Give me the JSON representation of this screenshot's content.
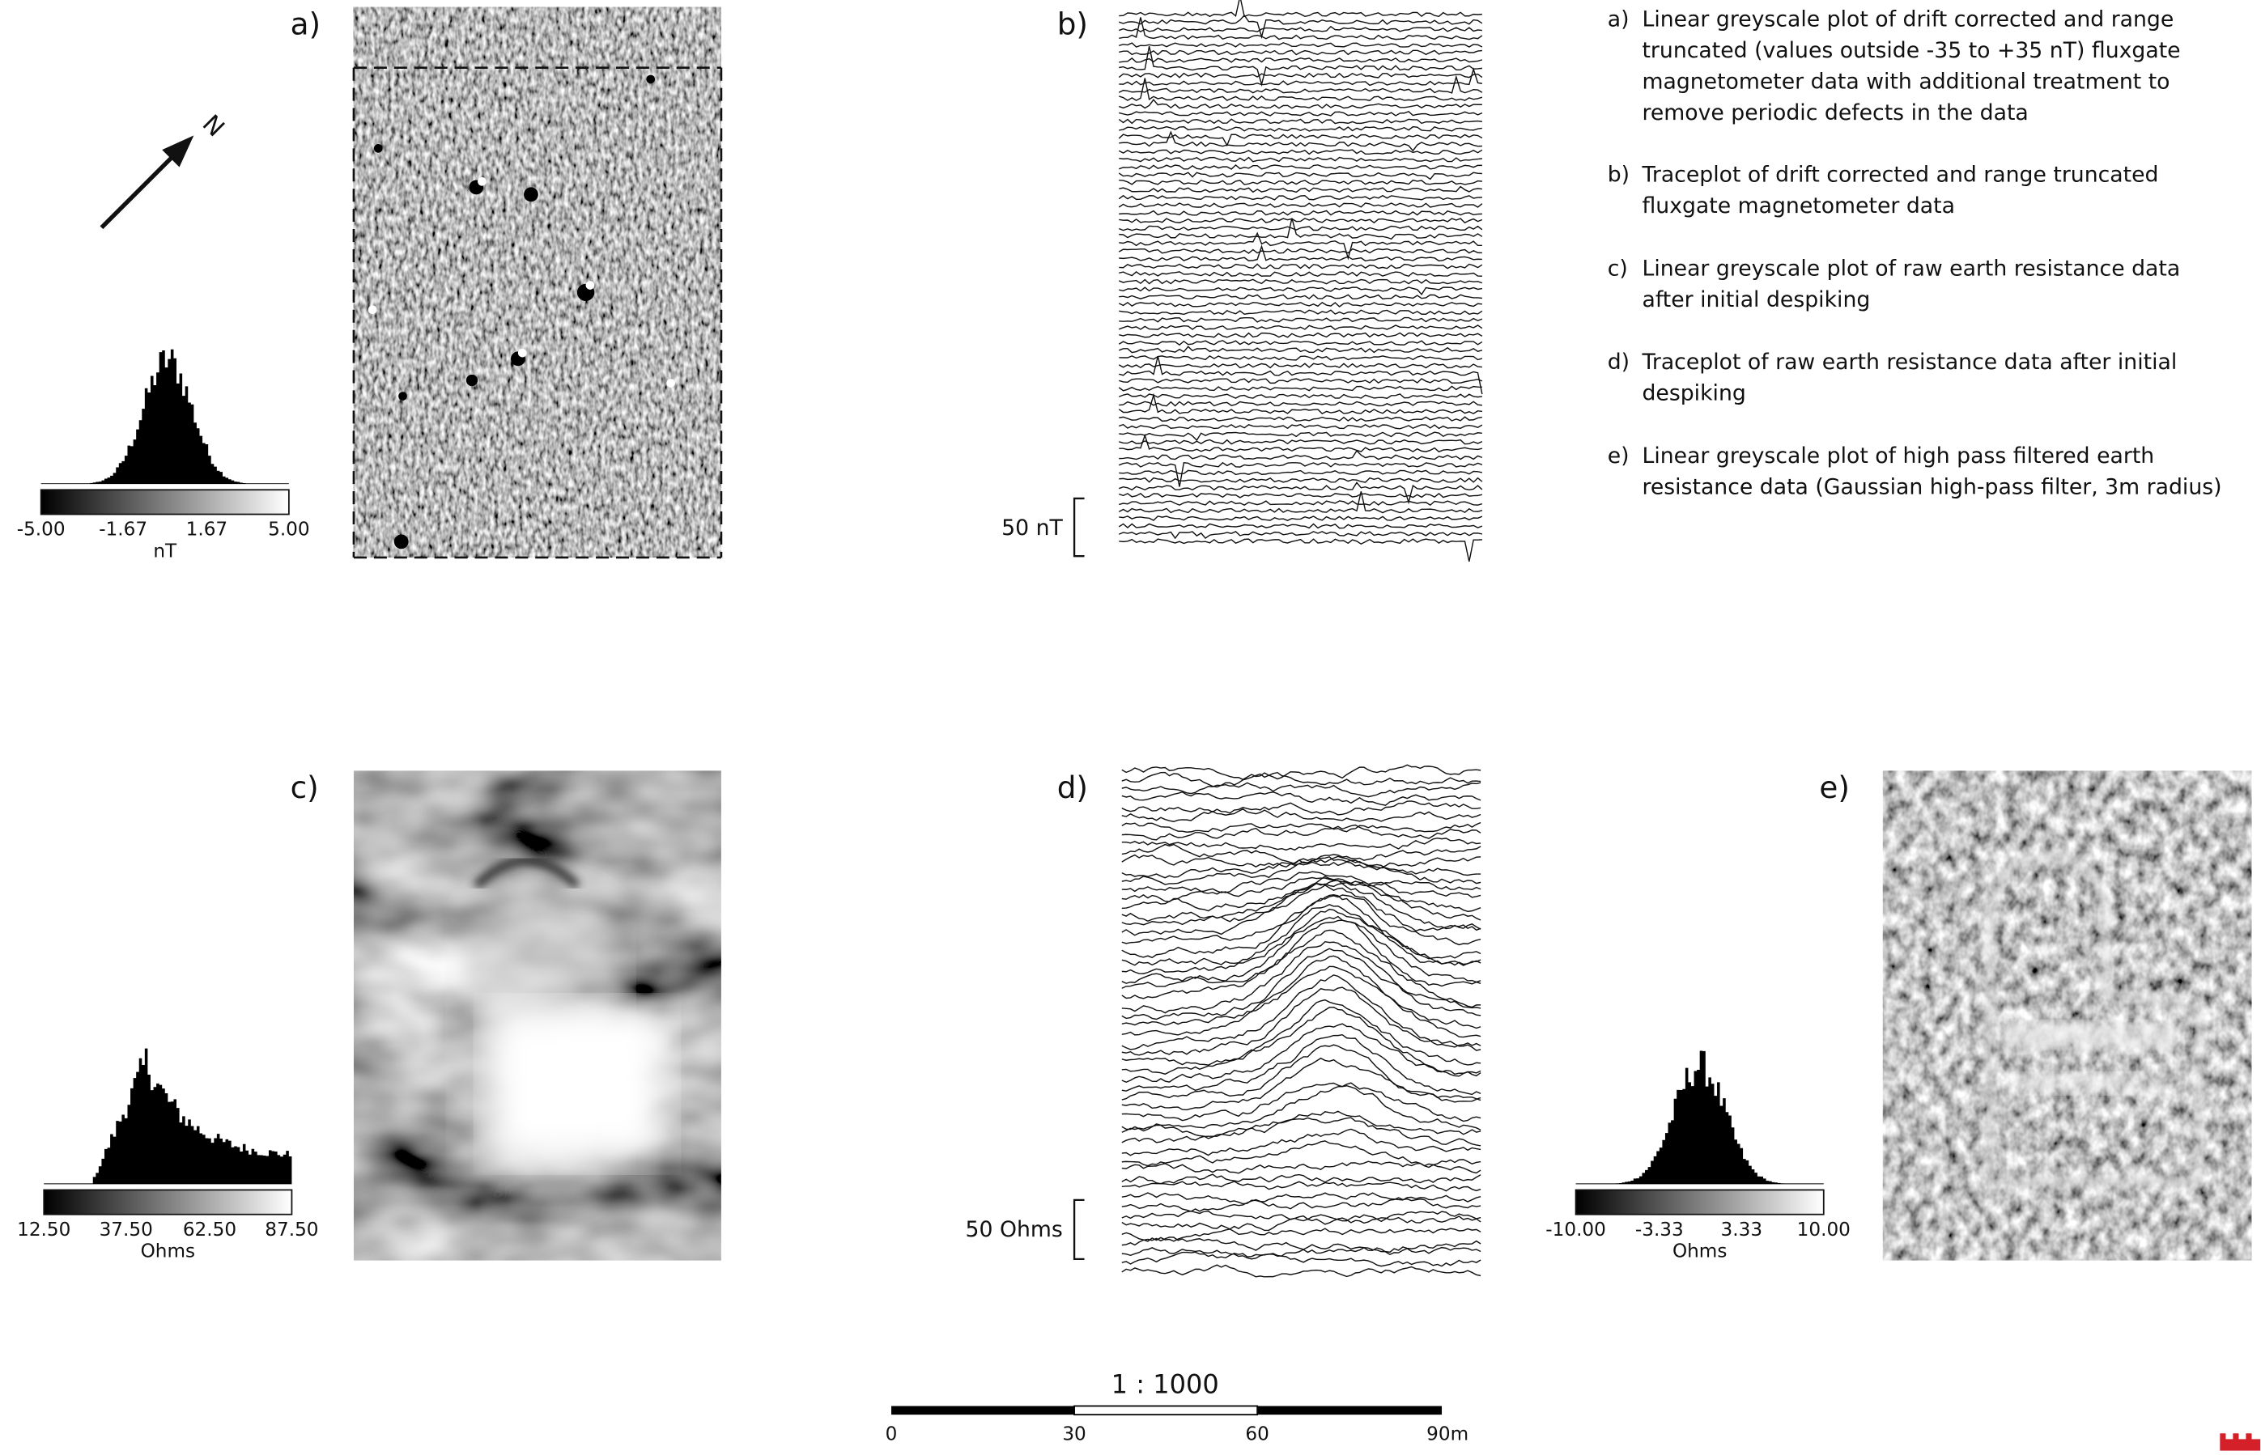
{
  "north_arrow": {
    "label": "N"
  },
  "panels": [
    {
      "label": "a)"
    },
    {
      "label": "b)"
    },
    {
      "label": "c)"
    },
    {
      "label": "d)"
    },
    {
      "label": "e)"
    }
  ],
  "histograms": [
    {
      "ticks": [
        "-5.00",
        "-1.67",
        "1.67",
        "5.00"
      ],
      "unit": "nT"
    },
    {
      "ticks": [
        "12.50",
        "37.50",
        "62.50",
        "87.50"
      ],
      "unit": "Ohms"
    },
    {
      "ticks": [
        "-10.00",
        "-3.33",
        "3.33",
        "10.00"
      ],
      "unit": "Ohms"
    }
  ],
  "trace_scales": [
    {
      "label": "50 nT"
    },
    {
      "label": "50 Ohms"
    }
  ],
  "captions": [
    {
      "label": "a)",
      "lines": [
        "Linear greyscale plot of drift corrected and range",
        "truncated (values outside -35 to +35 nT) fluxgate",
        "magnetometer data with additional treatment to",
        "remove periodic defects in the data"
      ]
    },
    {
      "label": "b)",
      "lines": [
        "Traceplot of drift corrected and range truncated",
        "fluxgate magnetometer data"
      ]
    },
    {
      "label": "c)",
      "lines": [
        "Linear greyscale plot of raw earth resistance data",
        "after initial despiking"
      ]
    },
    {
      "label": "d)",
      "lines": [
        "Traceplot of raw earth resistance data after initial",
        "despiking"
      ]
    },
    {
      "label": "e)",
      "lines": [
        "Linear greyscale plot of high pass filtered earth",
        "resistance data (Gaussian high-pass filter, 3m radius)"
      ]
    }
  ],
  "scale_bar": {
    "title": "1 : 1000",
    "ticks": [
      "0",
      "30",
      "60",
      "90m"
    ]
  }
}
